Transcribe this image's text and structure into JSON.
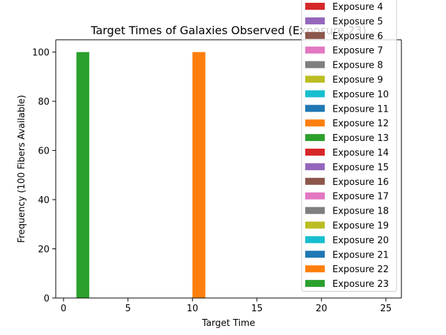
{
  "chart_data": {
    "type": "bar",
    "title": "Target Times of Galaxies Observed (Exposure 23)",
    "xlabel": "Target Time",
    "ylabel": "Frequency (100 Fibers Available)",
    "xlim": [
      -0.6,
      26.2
    ],
    "ylim": [
      0,
      105
    ],
    "xticks": [
      0,
      5,
      10,
      15,
      20,
      25
    ],
    "yticks": [
      0,
      20,
      40,
      60,
      80,
      100
    ],
    "grid": false,
    "legend_position": "top-right",
    "bar_width": 1,
    "bars": [
      {
        "x_start": 1,
        "x_end": 2,
        "value": 100,
        "color": "#2ca02c",
        "series": "Exposure 23"
      },
      {
        "x_start": 10,
        "x_end": 11,
        "value": 100,
        "color": "#ff7f0e",
        "series": "Exposure 22"
      }
    ],
    "series": [
      {
        "name": "Exposure 4",
        "color": "#d62728"
      },
      {
        "name": "Exposure 5",
        "color": "#9467bd"
      },
      {
        "name": "Exposure 6",
        "color": "#8c564b"
      },
      {
        "name": "Exposure 7",
        "color": "#e377c2"
      },
      {
        "name": "Exposure 8",
        "color": "#7f7f7f"
      },
      {
        "name": "Exposure 9",
        "color": "#bcbd22"
      },
      {
        "name": "Exposure 10",
        "color": "#17becf"
      },
      {
        "name": "Exposure 11",
        "color": "#1f77b4"
      },
      {
        "name": "Exposure 12",
        "color": "#ff7f0e"
      },
      {
        "name": "Exposure 13",
        "color": "#2ca02c"
      },
      {
        "name": "Exposure 14",
        "color": "#d62728"
      },
      {
        "name": "Exposure 15",
        "color": "#9467bd"
      },
      {
        "name": "Exposure 16",
        "color": "#8c564b"
      },
      {
        "name": "Exposure 17",
        "color": "#e377c2"
      },
      {
        "name": "Exposure 18",
        "color": "#7f7f7f"
      },
      {
        "name": "Exposure 19",
        "color": "#bcbd22"
      },
      {
        "name": "Exposure 20",
        "color": "#17becf"
      },
      {
        "name": "Exposure 21",
        "color": "#1f77b4"
      },
      {
        "name": "Exposure 22",
        "color": "#ff7f0e"
      },
      {
        "name": "Exposure 23",
        "color": "#2ca02c"
      }
    ]
  }
}
